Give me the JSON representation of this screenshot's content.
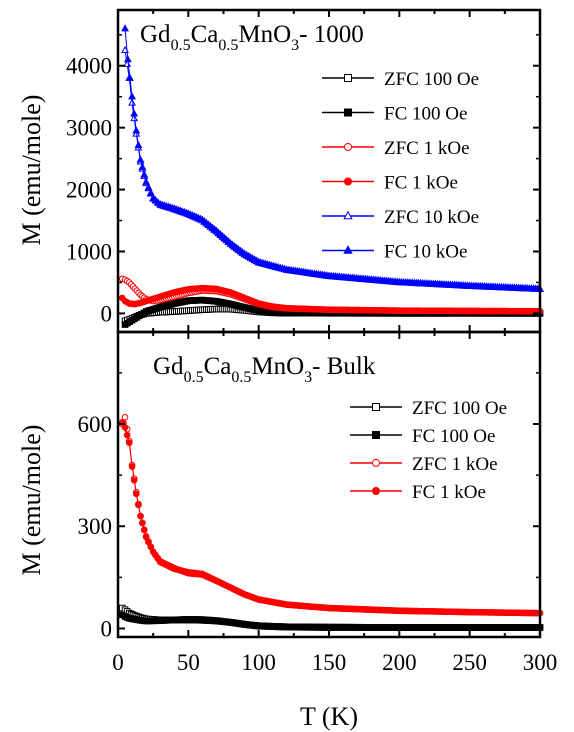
{
  "figure": {
    "xlabel": "T (K)",
    "shared_x_ticks": [
      "0",
      "50",
      "100",
      "150",
      "200",
      "250",
      "300"
    ]
  },
  "chart_data": [
    {
      "type": "scatter",
      "panel": "top",
      "title": {
        "base": "Gd",
        "s1": "0.5",
        "mid1": "Ca",
        "s2": "0.5",
        "mid2": "MnO",
        "s3": "3",
        "tail": "- 1000"
      },
      "xlabel": "T (K)",
      "ylabel": "M (emu/mole)",
      "xlim": [
        0,
        300
      ],
      "ylim": [
        -300,
        4900
      ],
      "yticks": [
        "0",
        "1000",
        "2000",
        "3000",
        "4000"
      ],
      "legend_position": "right",
      "series": [
        {
          "name": "ZFC 100 Oe",
          "color": "#000000",
          "marker": "square",
          "filled": false,
          "points": [
            [
              5,
              -120
            ],
            [
              10,
              -80
            ],
            [
              15,
              -30
            ],
            [
              20,
              0
            ],
            [
              30,
              20
            ],
            [
              40,
              30
            ],
            [
              50,
              45
            ],
            [
              60,
              60
            ],
            [
              70,
              70
            ],
            [
              80,
              70
            ],
            [
              90,
              50
            ],
            [
              100,
              25
            ],
            [
              110,
              10
            ],
            [
              120,
              5
            ],
            [
              150,
              3
            ],
            [
              200,
              2
            ],
            [
              250,
              2
            ],
            [
              300,
              2
            ]
          ]
        },
        {
          "name": "FC 100 Oe",
          "color": "#000000",
          "marker": "square",
          "filled": true,
          "points": [
            [
              5,
              -180
            ],
            [
              10,
              -110
            ],
            [
              15,
              -40
            ],
            [
              20,
              30
            ],
            [
              30,
              100
            ],
            [
              40,
              160
            ],
            [
              50,
              205
            ],
            [
              60,
              215
            ],
            [
              70,
              195
            ],
            [
              80,
              150
            ],
            [
              90,
              95
            ],
            [
              100,
              45
            ],
            [
              110,
              20
            ],
            [
              120,
              10
            ],
            [
              150,
              5
            ],
            [
              200,
              3
            ],
            [
              250,
              3
            ],
            [
              300,
              2
            ]
          ]
        },
        {
          "name": "ZFC 1 kOe",
          "color": "#ff0000",
          "marker": "circle",
          "filled": false,
          "points": [
            [
              3,
              560
            ],
            [
              5,
              545
            ],
            [
              8,
              500
            ],
            [
              12,
              400
            ],
            [
              16,
              300
            ],
            [
              20,
              230
            ],
            [
              25,
              200
            ],
            [
              30,
              215
            ],
            [
              40,
              270
            ],
            [
              50,
              330
            ],
            [
              60,
              370
            ],
            [
              70,
              360
            ],
            [
              80,
              310
            ],
            [
              90,
              230
            ],
            [
              100,
              150
            ],
            [
              110,
              100
            ],
            [
              120,
              80
            ],
            [
              150,
              60
            ],
            [
              200,
              45
            ],
            [
              250,
              40
            ],
            [
              300,
              35
            ]
          ]
        },
        {
          "name": "FC 1 kOe",
          "color": "#ff0000",
          "marker": "circle",
          "filled": true,
          "points": [
            [
              3,
              250
            ],
            [
              5,
              200
            ],
            [
              8,
              160
            ],
            [
              12,
              150
            ],
            [
              16,
              170
            ],
            [
              20,
              200
            ],
            [
              30,
              270
            ],
            [
              40,
              340
            ],
            [
              50,
              390
            ],
            [
              60,
              410
            ],
            [
              70,
              395
            ],
            [
              80,
              340
            ],
            [
              90,
              250
            ],
            [
              100,
              160
            ],
            [
              110,
              110
            ],
            [
              120,
              85
            ],
            [
              150,
              60
            ],
            [
              200,
              45
            ],
            [
              250,
              40
            ],
            [
              300,
              35
            ]
          ]
        },
        {
          "name": "ZFC 10 kOe",
          "color": "#0000ff",
          "marker": "triangle",
          "filled": false,
          "points": [
            [
              5,
              4250
            ],
            [
              8,
              3800
            ],
            [
              10,
              3400
            ],
            [
              13,
              2900
            ],
            [
              16,
              2450
            ],
            [
              20,
              2100
            ],
            [
              25,
              1850
            ],
            [
              30,
              1750
            ],
            [
              40,
              1680
            ],
            [
              50,
              1600
            ],
            [
              60,
              1500
            ],
            [
              70,
              1320
            ],
            [
              80,
              1120
            ],
            [
              90,
              950
            ],
            [
              100,
              820
            ],
            [
              120,
              700
            ],
            [
              150,
              600
            ],
            [
              200,
              500
            ],
            [
              250,
              440
            ],
            [
              300,
              390
            ]
          ]
        },
        {
          "name": "FC 10 kOe",
          "color": "#0000ff",
          "marker": "triangle",
          "filled": true,
          "points": [
            [
              5,
              4600
            ],
            [
              7,
              4100
            ],
            [
              10,
              3500
            ],
            [
              13,
              2950
            ],
            [
              16,
              2480
            ],
            [
              20,
              2120
            ],
            [
              25,
              1860
            ],
            [
              30,
              1760
            ],
            [
              40,
              1690
            ],
            [
              50,
              1610
            ],
            [
              60,
              1510
            ],
            [
              70,
              1330
            ],
            [
              80,
              1130
            ],
            [
              90,
              960
            ],
            [
              100,
              830
            ],
            [
              120,
              705
            ],
            [
              150,
              605
            ],
            [
              200,
              505
            ],
            [
              250,
              445
            ],
            [
              300,
              395
            ]
          ]
        }
      ]
    },
    {
      "type": "scatter",
      "panel": "bottom",
      "title": {
        "base": "Gd",
        "s1": "0.5",
        "mid1": "Ca",
        "s2": "0.5",
        "mid2": "MnO",
        "s3": "3",
        "tail": "- Bulk"
      },
      "xlabel": "T (K)",
      "ylabel": "M (emu/mole)",
      "xlim": [
        0,
        300
      ],
      "ylim": [
        -25,
        870
      ],
      "yticks": [
        "0",
        "300",
        "600"
      ],
      "legend_position": "right",
      "series": [
        {
          "name": "ZFC 100 Oe",
          "color": "#000000",
          "marker": "square",
          "filled": false,
          "points": [
            [
              3,
              60
            ],
            [
              5,
              55
            ],
            [
              8,
              45
            ],
            [
              12,
              38
            ],
            [
              16,
              32
            ],
            [
              20,
              28
            ],
            [
              30,
              25
            ],
            [
              40,
              25
            ],
            [
              50,
              25
            ],
            [
              60,
              24
            ],
            [
              70,
              22
            ],
            [
              80,
              18
            ],
            [
              90,
              12
            ],
            [
              100,
              8
            ],
            [
              120,
              5
            ],
            [
              150,
              4
            ],
            [
              200,
              3
            ],
            [
              250,
              3
            ],
            [
              300,
              3
            ]
          ]
        },
        {
          "name": "FC 100 Oe",
          "color": "#000000",
          "marker": "square",
          "filled": true,
          "points": [
            [
              3,
              40
            ],
            [
              5,
              35
            ],
            [
              8,
              30
            ],
            [
              12,
              27
            ],
            [
              16,
              24
            ],
            [
              20,
              22
            ],
            [
              30,
              23
            ],
            [
              40,
              25
            ],
            [
              50,
              27
            ],
            [
              60,
              26
            ],
            [
              70,
              23
            ],
            [
              80,
              18
            ],
            [
              90,
              12
            ],
            [
              100,
              7
            ],
            [
              120,
              4
            ],
            [
              150,
              3
            ],
            [
              200,
              3
            ],
            [
              250,
              3
            ],
            [
              300,
              3
            ]
          ]
        },
        {
          "name": "ZFC 1 kOe",
          "color": "#ff0000",
          "marker": "circle",
          "filled": false,
          "points": [
            [
              3,
              600
            ],
            [
              5,
              620
            ],
            [
              8,
              550
            ],
            [
              10,
              480
            ],
            [
              13,
              400
            ],
            [
              16,
              330
            ],
            [
              20,
              270
            ],
            [
              25,
              225
            ],
            [
              30,
              195
            ],
            [
              40,
              175
            ],
            [
              50,
              165
            ],
            [
              60,
              160
            ],
            [
              70,
              140
            ],
            [
              80,
              120
            ],
            [
              90,
              100
            ],
            [
              100,
              85
            ],
            [
              120,
              70
            ],
            [
              150,
              60
            ],
            [
              200,
              52
            ],
            [
              250,
              48
            ],
            [
              300,
              45
            ]
          ]
        },
        {
          "name": "FC 1 kOe",
          "color": "#ff0000",
          "marker": "circle",
          "filled": true,
          "points": [
            [
              3,
              605
            ],
            [
              5,
              590
            ],
            [
              8,
              545
            ],
            [
              10,
              475
            ],
            [
              13,
              395
            ],
            [
              16,
              330
            ],
            [
              20,
              268
            ],
            [
              25,
              225
            ],
            [
              30,
              197
            ],
            [
              40,
              177
            ],
            [
              50,
              162
            ],
            [
              60,
              158
            ],
            [
              70,
              140
            ],
            [
              80,
              120
            ],
            [
              90,
              100
            ],
            [
              100,
              85
            ],
            [
              120,
              70
            ],
            [
              150,
              60
            ],
            [
              200,
              52
            ],
            [
              250,
              48
            ],
            [
              300,
              45
            ]
          ]
        }
      ]
    }
  ]
}
